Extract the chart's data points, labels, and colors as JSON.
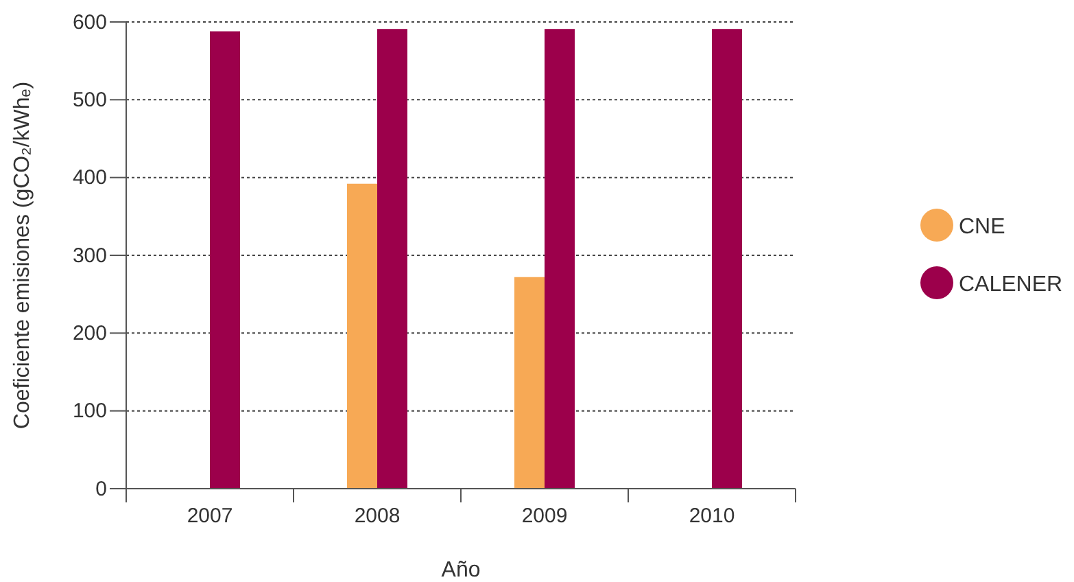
{
  "chart_data": {
    "type": "bar",
    "xlabel": "Año",
    "ylabel": "Coeficiente emisiones (gCO₂/kWhₑ)",
    "categories": [
      "2007",
      "2008",
      "2009",
      "2010"
    ],
    "series": [
      {
        "name": "CNE",
        "color": "#f7a955",
        "values": [
          null,
          392,
          272,
          null
        ]
      },
      {
        "name": "CALENER",
        "color": "#9c004b",
        "values": [
          588,
          591,
          591,
          591
        ]
      }
    ],
    "ylim": [
      0,
      600
    ],
    "yticks": [
      0,
      100,
      200,
      300,
      400,
      500,
      600
    ],
    "grid": "y",
    "legend": "right"
  }
}
